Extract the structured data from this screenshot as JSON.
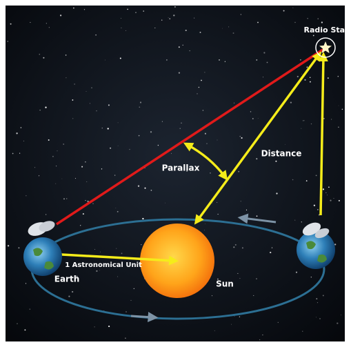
{
  "labels": {
    "radio_star": "Radio Star",
    "parallax": "Parallax",
    "distance": "Distance",
    "au": "1 Astronomical Unit",
    "earth": "Earth",
    "sun": "Sun"
  }
}
